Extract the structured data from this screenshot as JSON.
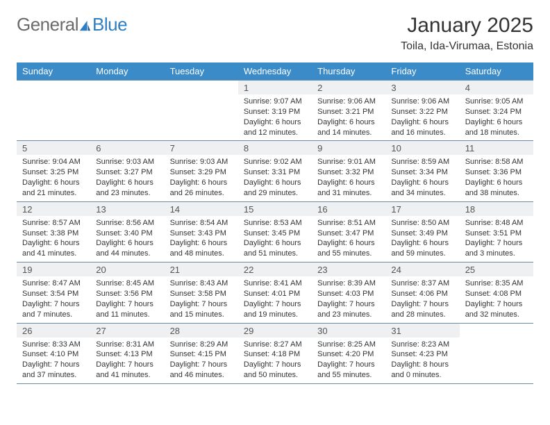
{
  "logo": {
    "word1": "General",
    "word2": "Blue"
  },
  "title": {
    "month": "January 2025",
    "location": "Toila, Ida-Virumaa, Estonia"
  },
  "colors": {
    "header_bg": "#3b8bc9",
    "header_text": "#ffffff",
    "daynum_bg": "#eef0f1",
    "border": "#6a8aa8",
    "logo_gray": "#6a6a6a",
    "logo_blue": "#2f7ec2",
    "page_bg": "#ffffff",
    "text": "#333333"
  },
  "daysOfWeek": [
    "Sunday",
    "Monday",
    "Tuesday",
    "Wednesday",
    "Thursday",
    "Friday",
    "Saturday"
  ],
  "weeks": [
    [
      {
        "n": "",
        "s": "",
        "t": "",
        "d": ""
      },
      {
        "n": "",
        "s": "",
        "t": "",
        "d": ""
      },
      {
        "n": "",
        "s": "",
        "t": "",
        "d": ""
      },
      {
        "n": "1",
        "s": "Sunrise: 9:07 AM",
        "t": "Sunset: 3:19 PM",
        "d": "Daylight: 6 hours and 12 minutes."
      },
      {
        "n": "2",
        "s": "Sunrise: 9:06 AM",
        "t": "Sunset: 3:21 PM",
        "d": "Daylight: 6 hours and 14 minutes."
      },
      {
        "n": "3",
        "s": "Sunrise: 9:06 AM",
        "t": "Sunset: 3:22 PM",
        "d": "Daylight: 6 hours and 16 minutes."
      },
      {
        "n": "4",
        "s": "Sunrise: 9:05 AM",
        "t": "Sunset: 3:24 PM",
        "d": "Daylight: 6 hours and 18 minutes."
      }
    ],
    [
      {
        "n": "5",
        "s": "Sunrise: 9:04 AM",
        "t": "Sunset: 3:25 PM",
        "d": "Daylight: 6 hours and 21 minutes."
      },
      {
        "n": "6",
        "s": "Sunrise: 9:03 AM",
        "t": "Sunset: 3:27 PM",
        "d": "Daylight: 6 hours and 23 minutes."
      },
      {
        "n": "7",
        "s": "Sunrise: 9:03 AM",
        "t": "Sunset: 3:29 PM",
        "d": "Daylight: 6 hours and 26 minutes."
      },
      {
        "n": "8",
        "s": "Sunrise: 9:02 AM",
        "t": "Sunset: 3:31 PM",
        "d": "Daylight: 6 hours and 29 minutes."
      },
      {
        "n": "9",
        "s": "Sunrise: 9:01 AM",
        "t": "Sunset: 3:32 PM",
        "d": "Daylight: 6 hours and 31 minutes."
      },
      {
        "n": "10",
        "s": "Sunrise: 8:59 AM",
        "t": "Sunset: 3:34 PM",
        "d": "Daylight: 6 hours and 34 minutes."
      },
      {
        "n": "11",
        "s": "Sunrise: 8:58 AM",
        "t": "Sunset: 3:36 PM",
        "d": "Daylight: 6 hours and 38 minutes."
      }
    ],
    [
      {
        "n": "12",
        "s": "Sunrise: 8:57 AM",
        "t": "Sunset: 3:38 PM",
        "d": "Daylight: 6 hours and 41 minutes."
      },
      {
        "n": "13",
        "s": "Sunrise: 8:56 AM",
        "t": "Sunset: 3:40 PM",
        "d": "Daylight: 6 hours and 44 minutes."
      },
      {
        "n": "14",
        "s": "Sunrise: 8:54 AM",
        "t": "Sunset: 3:43 PM",
        "d": "Daylight: 6 hours and 48 minutes."
      },
      {
        "n": "15",
        "s": "Sunrise: 8:53 AM",
        "t": "Sunset: 3:45 PM",
        "d": "Daylight: 6 hours and 51 minutes."
      },
      {
        "n": "16",
        "s": "Sunrise: 8:51 AM",
        "t": "Sunset: 3:47 PM",
        "d": "Daylight: 6 hours and 55 minutes."
      },
      {
        "n": "17",
        "s": "Sunrise: 8:50 AM",
        "t": "Sunset: 3:49 PM",
        "d": "Daylight: 6 hours and 59 minutes."
      },
      {
        "n": "18",
        "s": "Sunrise: 8:48 AM",
        "t": "Sunset: 3:51 PM",
        "d": "Daylight: 7 hours and 3 minutes."
      }
    ],
    [
      {
        "n": "19",
        "s": "Sunrise: 8:47 AM",
        "t": "Sunset: 3:54 PM",
        "d": "Daylight: 7 hours and 7 minutes."
      },
      {
        "n": "20",
        "s": "Sunrise: 8:45 AM",
        "t": "Sunset: 3:56 PM",
        "d": "Daylight: 7 hours and 11 minutes."
      },
      {
        "n": "21",
        "s": "Sunrise: 8:43 AM",
        "t": "Sunset: 3:58 PM",
        "d": "Daylight: 7 hours and 15 minutes."
      },
      {
        "n": "22",
        "s": "Sunrise: 8:41 AM",
        "t": "Sunset: 4:01 PM",
        "d": "Daylight: 7 hours and 19 minutes."
      },
      {
        "n": "23",
        "s": "Sunrise: 8:39 AM",
        "t": "Sunset: 4:03 PM",
        "d": "Daylight: 7 hours and 23 minutes."
      },
      {
        "n": "24",
        "s": "Sunrise: 8:37 AM",
        "t": "Sunset: 4:06 PM",
        "d": "Daylight: 7 hours and 28 minutes."
      },
      {
        "n": "25",
        "s": "Sunrise: 8:35 AM",
        "t": "Sunset: 4:08 PM",
        "d": "Daylight: 7 hours and 32 minutes."
      }
    ],
    [
      {
        "n": "26",
        "s": "Sunrise: 8:33 AM",
        "t": "Sunset: 4:10 PM",
        "d": "Daylight: 7 hours and 37 minutes."
      },
      {
        "n": "27",
        "s": "Sunrise: 8:31 AM",
        "t": "Sunset: 4:13 PM",
        "d": "Daylight: 7 hours and 41 minutes."
      },
      {
        "n": "28",
        "s": "Sunrise: 8:29 AM",
        "t": "Sunset: 4:15 PM",
        "d": "Daylight: 7 hours and 46 minutes."
      },
      {
        "n": "29",
        "s": "Sunrise: 8:27 AM",
        "t": "Sunset: 4:18 PM",
        "d": "Daylight: 7 hours and 50 minutes."
      },
      {
        "n": "30",
        "s": "Sunrise: 8:25 AM",
        "t": "Sunset: 4:20 PM",
        "d": "Daylight: 7 hours and 55 minutes."
      },
      {
        "n": "31",
        "s": "Sunrise: 8:23 AM",
        "t": "Sunset: 4:23 PM",
        "d": "Daylight: 8 hours and 0 minutes."
      },
      {
        "n": "",
        "s": "",
        "t": "",
        "d": ""
      }
    ]
  ]
}
